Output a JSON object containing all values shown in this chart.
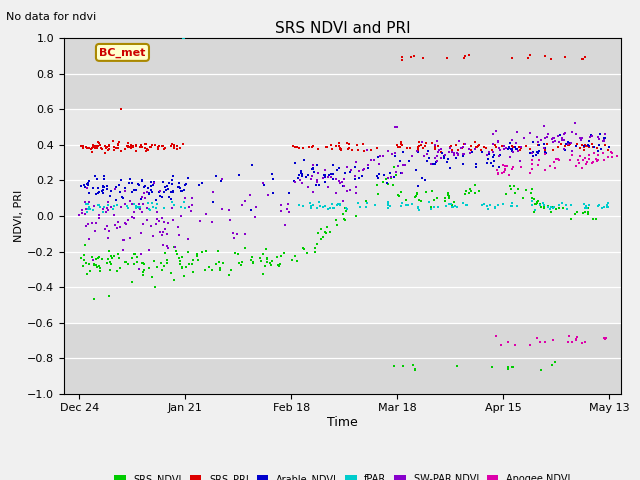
{
  "title": "SRS NDVI and PRI",
  "top_left_text": "No data for ndvi",
  "xlabel": "Time",
  "ylabel": "NDVI, PRI",
  "ylim": [
    -1.0,
    1.0
  ],
  "yticks": [
    -1.0,
    -0.8,
    -0.6,
    -0.4,
    -0.2,
    0.0,
    0.2,
    0.4,
    0.6,
    0.8,
    1.0
  ],
  "fig_bg_color": "#f0f0f0",
  "plot_bg_color": "#e8e8e8",
  "band_bg_color": "#d8d8d8",
  "annotation_text": "BC_met",
  "annotation_bg": "#ffffcc",
  "annotation_border": "#aa8800",
  "series": {
    "SRS_NDVI": {
      "color": "#00cc00"
    },
    "SRS_PRI": {
      "color": "#dd0000"
    },
    "Arable_NDVI": {
      "color": "#0000cc"
    },
    "fPAR": {
      "color": "#00cccc"
    },
    "SW-PAR NDVI": {
      "color": "#8800cc"
    },
    "Apogee NDVI": {
      "color": "#dd00aa"
    }
  },
  "xtick_labels": [
    "Dec 24",
    "Jan 21",
    "Feb 18",
    "Mar 18",
    "Apr 15",
    "May 13"
  ],
  "xtick_days": [
    0,
    28,
    56,
    84,
    112,
    140
  ]
}
